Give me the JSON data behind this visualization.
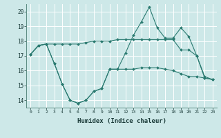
{
  "xlabel": "Humidex (Indice chaleur)",
  "background_color": "#cde8e8",
  "grid_color": "#ffffff",
  "line_color": "#2a7a70",
  "ylim": [
    13.5,
    20.5
  ],
  "xlim": [
    -0.5,
    23.5
  ],
  "yticks": [
    14,
    15,
    16,
    17,
    18,
    19,
    20
  ],
  "xticks": [
    0,
    1,
    2,
    3,
    4,
    5,
    6,
    7,
    8,
    9,
    10,
    11,
    12,
    13,
    14,
    15,
    16,
    17,
    18,
    19,
    20,
    21,
    22,
    23
  ],
  "series": [
    {
      "x": [
        0,
        1,
        2,
        3,
        4,
        5,
        6,
        7,
        8,
        9,
        10,
        11,
        12,
        13,
        14,
        15,
        16,
        17,
        18,
        19,
        20,
        21,
        22,
        23
      ],
      "y": [
        17.1,
        17.7,
        17.8,
        17.8,
        17.8,
        17.8,
        17.8,
        17.9,
        18.0,
        18.0,
        18.0,
        18.1,
        18.1,
        18.1,
        18.1,
        18.1,
        18.1,
        18.1,
        18.1,
        17.4,
        17.4,
        17.0,
        15.5,
        15.4
      ]
    },
    {
      "x": [
        0,
        1,
        2,
        3,
        4,
        5,
        6,
        7,
        8,
        9,
        10,
        11,
        12,
        13,
        14,
        15,
        16,
        17,
        18,
        19,
        20,
        21,
        22,
        23
      ],
      "y": [
        17.1,
        17.7,
        17.8,
        16.5,
        15.1,
        14.0,
        13.8,
        14.0,
        14.6,
        14.8,
        16.1,
        16.1,
        17.2,
        18.4,
        19.3,
        20.3,
        18.9,
        18.2,
        18.2,
        18.9,
        18.3,
        17.0,
        15.6,
        15.4
      ]
    },
    {
      "x": [
        0,
        1,
        2,
        3,
        4,
        5,
        6,
        7,
        8,
        9,
        10,
        11,
        12,
        13,
        14,
        15,
        16,
        17,
        18,
        19,
        20,
        21,
        22,
        23
      ],
      "y": [
        17.1,
        17.7,
        17.8,
        16.5,
        15.1,
        14.0,
        13.8,
        14.0,
        14.6,
        14.8,
        16.1,
        16.1,
        16.1,
        16.1,
        16.2,
        16.2,
        16.2,
        16.1,
        16.0,
        15.8,
        15.6,
        15.6,
        15.5,
        15.4
      ]
    }
  ]
}
